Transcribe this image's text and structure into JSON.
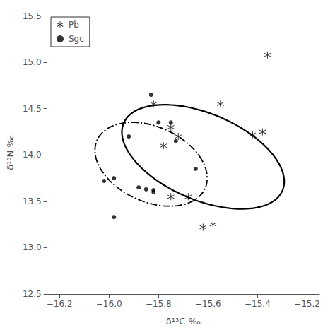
{
  "chart_data": {
    "type": "scatter",
    "xlabel": "δ¹³C ‰",
    "ylabel": "δ¹⁵N ‰",
    "xlim": [
      -16.25,
      -15.15
    ],
    "ylim": [
      12.5,
      15.55
    ],
    "xticks": [
      {
        "value": -16.2,
        "label": "−16.2"
      },
      {
        "value": -16.0,
        "label": "−16.0"
      },
      {
        "value": -15.8,
        "label": "−15.8"
      },
      {
        "value": -15.6,
        "label": "−15.6"
      },
      {
        "value": -15.4,
        "label": "−15.4"
      },
      {
        "value": -15.2,
        "label": "−15.2"
      }
    ],
    "yticks": [
      12.5,
      {
        "value": 13.0,
        "label": "13.0"
      },
      13.5,
      {
        "value": 14.0,
        "label": "14.0"
      },
      14.5,
      {
        "value": 15.0,
        "label": "15.0"
      },
      15.5
    ],
    "grid": false,
    "legend": "upper left",
    "series": [
      {
        "name": "Pb",
        "color": "black",
        "marker": "asterisk",
        "line_style": "solid",
        "x": [
          -15.75,
          -15.72,
          -15.78,
          -15.82,
          -15.75,
          -15.68,
          -15.62,
          -15.55,
          -15.58,
          -15.42,
          -15.38,
          -15.36
        ],
        "values": [
          14.3,
          14.2,
          14.1,
          14.55,
          13.55,
          13.55,
          13.22,
          14.55,
          13.25,
          14.22,
          14.25,
          15.08
        ],
        "ellipse": {
          "center": [
            -15.62,
            13.98
          ],
          "width": 0.55,
          "height": 1.18,
          "angle": 20
        }
      },
      {
        "name": "Sgc",
        "color": "black",
        "marker": "circle",
        "line_style": "dashdot",
        "x": [
          -15.98,
          -16.02,
          -15.88,
          -15.85,
          -15.92,
          -15.75,
          -15.73,
          -15.65,
          -15.98,
          -15.82,
          -15.83,
          -15.8,
          -15.82
        ],
        "values": [
          13.75,
          13.72,
          13.65,
          13.63,
          14.2,
          14.35,
          14.15,
          13.85,
          13.33,
          13.62,
          14.65,
          14.35,
          13.6
        ],
        "ellipse": {
          "center": [
            -15.83,
            13.9
          ],
          "width": 0.42,
          "height": 0.92,
          "angle": 12
        }
      }
    ]
  }
}
